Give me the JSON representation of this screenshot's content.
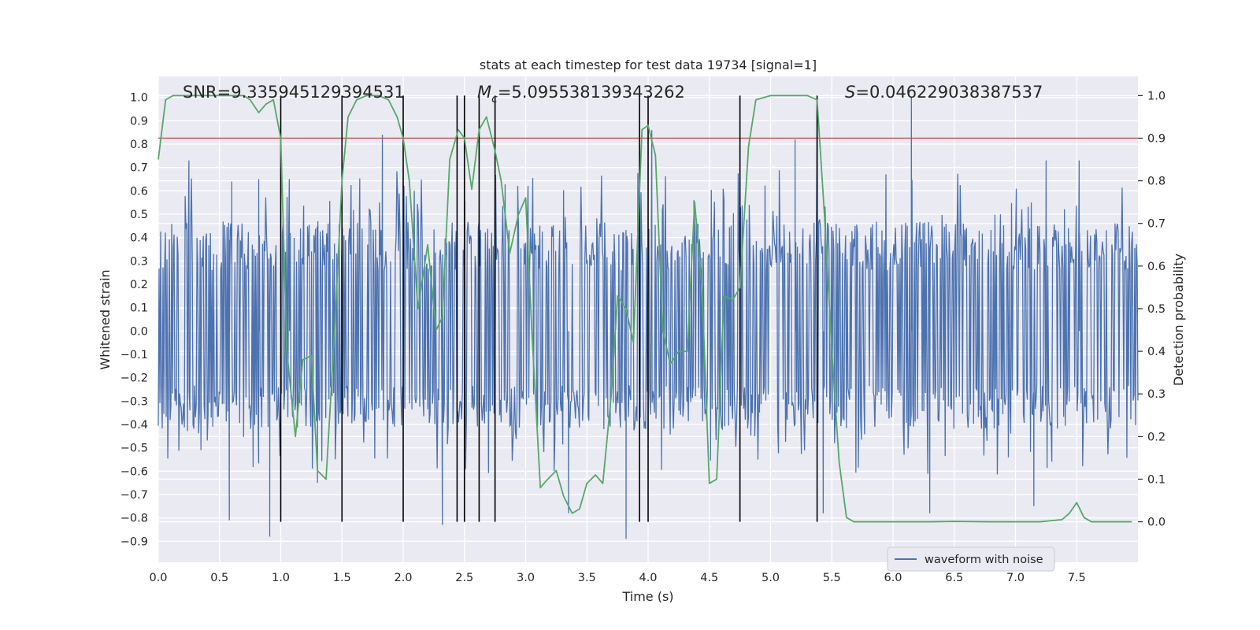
{
  "chart_data": {
    "type": "line",
    "title": "stats at each timestep for test data 19734 [signal=1]",
    "xlabel": "Time (s)",
    "ylabel_left": "Whitened strain",
    "ylabel_right": "Detection probability",
    "xlim": [
      0.0,
      8.0
    ],
    "ylim_left": [
      -0.99,
      1.09
    ],
    "ylim_right": [
      -0.095,
      1.045
    ],
    "x_ticks": [
      "0.0",
      "0.5",
      "1.0",
      "1.5",
      "2.0",
      "2.5",
      "3.0",
      "3.5",
      "4.0",
      "4.5",
      "5.0",
      "5.5",
      "6.0",
      "6.5",
      "7.0",
      "7.5"
    ],
    "y_left_ticks": [
      "−0.9",
      "−0.8",
      "−0.7",
      "−0.6",
      "−0.5",
      "−0.4",
      "−0.3",
      "−0.2",
      "−0.1",
      "0.0",
      "0.1",
      "0.2",
      "0.3",
      "0.4",
      "0.5",
      "0.6",
      "0.7",
      "0.8",
      "0.9",
      "1.0"
    ],
    "y_right_ticks": [
      "0.0",
      "0.1",
      "0.2",
      "0.3",
      "0.4",
      "0.5",
      "0.6",
      "0.7",
      "0.8",
      "0.9",
      "1.0"
    ],
    "annotations": {
      "snr": "SNR=9.335945129394531",
      "mc_symbol": "M",
      "mc_sub": "c",
      "mc_value": "=5.095538139343262",
      "s_symbol": "S",
      "s_value": "=0.046229038387537"
    },
    "legend": [
      {
        "label": "waveform with noise",
        "color": "#4c72b0"
      }
    ],
    "legend_position": "lower-right",
    "grid": true,
    "threshold": {
      "axis": "right",
      "value": 0.9,
      "color": "#c44e52"
    },
    "vertical_lines_x": [
      1.0,
      1.5,
      2.0,
      2.44,
      2.5,
      2.62,
      2.75,
      3.93,
      4.0,
      4.75,
      5.38
    ],
    "waveform": {
      "name": "waveform with noise",
      "color": "#4c72b0",
      "x_range": [
        0.0,
        8.0
      ],
      "envelope_upper": 0.47,
      "envelope_lower": -0.42,
      "peaks": [
        {
          "x": 0.25,
          "y": 0.73
        },
        {
          "x": 0.6,
          "y": 0.64
        },
        {
          "x": 0.82,
          "y": 0.65
        },
        {
          "x": 1.07,
          "y": 0.65
        },
        {
          "x": 1.83,
          "y": 0.84
        },
        {
          "x": 2.75,
          "y": 0.61
        },
        {
          "x": 4.03,
          "y": 0.86
        },
        {
          "x": 5.2,
          "y": 0.82
        },
        {
          "x": 5.38,
          "y": 0.96
        },
        {
          "x": 6.15,
          "y": 1.0
        },
        {
          "x": 7.25,
          "y": 0.73
        },
        {
          "x": 7.52,
          "y": 0.73
        }
      ],
      "troughs": [
        {
          "x": 0.58,
          "y": -0.81
        },
        {
          "x": 0.91,
          "y": -0.88
        },
        {
          "x": 1.3,
          "y": -0.65
        },
        {
          "x": 2.32,
          "y": -0.83
        },
        {
          "x": 3.35,
          "y": -0.78
        },
        {
          "x": 3.82,
          "y": -0.89
        },
        {
          "x": 5.43,
          "y": -0.78
        },
        {
          "x": 6.3,
          "y": -0.78
        },
        {
          "x": 7.15,
          "y": -0.75
        }
      ]
    },
    "series": [
      {
        "color": "#55a868",
        "axis": "right",
        "x": [
          0.0,
          0.06,
          0.12,
          0.5,
          0.7,
          0.75,
          0.82,
          0.88,
          0.94,
          1.0,
          1.05,
          1.12,
          1.18,
          1.25,
          1.3,
          1.37,
          1.44,
          1.5,
          1.55,
          1.62,
          1.7,
          1.8,
          1.88,
          1.95,
          2.0,
          2.05,
          2.12,
          2.2,
          2.27,
          2.32,
          2.38,
          2.45,
          2.5,
          2.56,
          2.62,
          2.68,
          2.75,
          2.8,
          2.87,
          2.94,
          3.0,
          3.05,
          3.12,
          3.18,
          3.25,
          3.31,
          3.38,
          3.44,
          3.5,
          3.57,
          3.63,
          3.7,
          3.75,
          3.82,
          3.88,
          3.95,
          4.0,
          4.06,
          4.12,
          4.18,
          4.25,
          4.32,
          4.38,
          4.44,
          4.5,
          4.56,
          4.62,
          4.69,
          4.75,
          4.82,
          4.88,
          5.0,
          5.1,
          5.3,
          5.38,
          5.44,
          5.5,
          5.56,
          5.62,
          5.68,
          6.0,
          6.3,
          6.5,
          6.8,
          7.2,
          7.38,
          7.44,
          7.5,
          7.56,
          7.62,
          7.95
        ],
        "y": [
          0.85,
          0.99,
          1.0,
          1.0,
          1.0,
          0.99,
          0.96,
          0.98,
          0.99,
          0.9,
          0.4,
          0.2,
          0.38,
          0.39,
          0.12,
          0.1,
          0.45,
          0.8,
          0.95,
          0.99,
          1.0,
          1.0,
          0.99,
          0.95,
          0.9,
          0.8,
          0.5,
          0.65,
          0.45,
          0.48,
          0.85,
          0.92,
          0.9,
          0.78,
          0.92,
          0.95,
          0.87,
          0.8,
          0.63,
          0.72,
          0.76,
          0.45,
          0.08,
          0.1,
          0.12,
          0.06,
          0.02,
          0.03,
          0.09,
          0.11,
          0.09,
          0.3,
          0.53,
          0.5,
          0.42,
          0.92,
          0.93,
          0.86,
          0.45,
          0.37,
          0.4,
          0.4,
          0.75,
          0.55,
          0.09,
          0.1,
          0.53,
          0.52,
          0.55,
          0.88,
          0.99,
          1.0,
          1.0,
          1.0,
          0.99,
          0.72,
          0.4,
          0.14,
          0.01,
          0.0,
          0.0,
          0.0,
          0.001,
          0.0,
          0.0,
          0.005,
          0.02,
          0.045,
          0.01,
          0.0,
          0.0
        ]
      }
    ]
  }
}
